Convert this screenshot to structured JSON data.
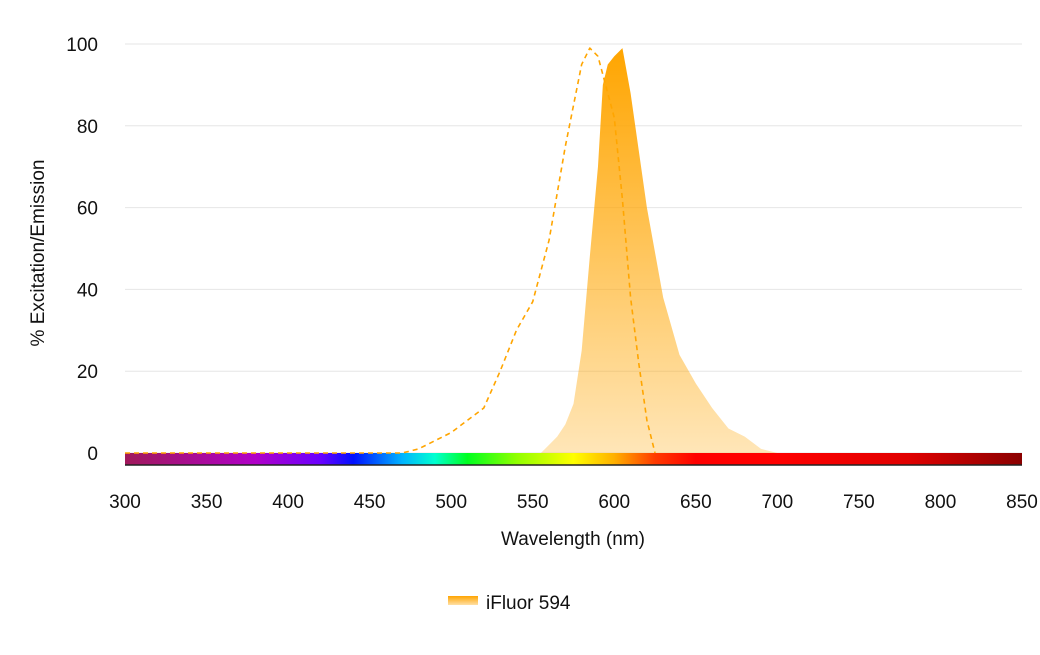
{
  "chart_data": {
    "type": "area",
    "title": "",
    "xlabel": "Wavelength (nm)",
    "ylabel": "% Excitation/Emission",
    "xlim": [
      300,
      850
    ],
    "ylim": [
      0,
      100
    ],
    "xticks": [
      300,
      350,
      400,
      450,
      500,
      550,
      600,
      650,
      700,
      750,
      800,
      850
    ],
    "yticks": [
      0,
      20,
      40,
      60,
      80,
      100
    ],
    "grid": true,
    "legend_position": "bottom-center",
    "legend": [
      "iFluor 594"
    ],
    "colors": {
      "series": "#ffa500",
      "grid": "#e6e6e6"
    },
    "spectrum_bar": true,
    "series": [
      {
        "name": "iFluor 594",
        "excitation": {
          "style": "dashed-line",
          "x": [
            300,
            400,
            470,
            480,
            490,
            500,
            510,
            520,
            530,
            540,
            550,
            560,
            570,
            580,
            585,
            590,
            600,
            605,
            610,
            615,
            620,
            625
          ],
          "y": [
            0,
            0,
            0,
            1,
            3,
            5,
            8,
            11,
            20,
            30,
            37,
            52,
            75,
            95,
            99,
            97,
            82,
            62,
            38,
            22,
            8,
            0
          ]
        },
        "emission": {
          "style": "filled-area",
          "x": [
            555,
            560,
            565,
            570,
            575,
            580,
            585,
            590,
            593,
            596,
            600,
            605,
            610,
            615,
            620,
            630,
            640,
            650,
            660,
            670,
            680,
            690,
            700
          ],
          "y": [
            0,
            2,
            4,
            7,
            12,
            25,
            48,
            70,
            90,
            95,
            97,
            99,
            88,
            74,
            60,
            38,
            24,
            17,
            11,
            6,
            4,
            1,
            0
          ]
        }
      }
    ]
  }
}
